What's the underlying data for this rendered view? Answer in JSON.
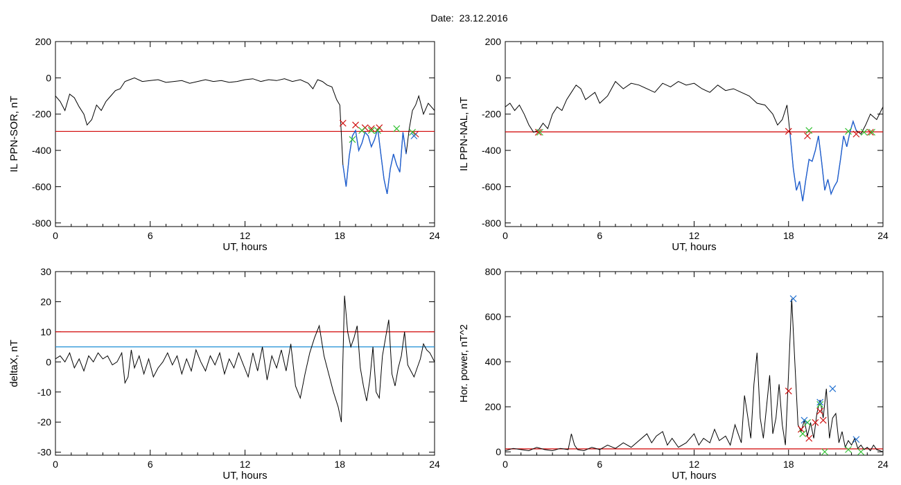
{
  "page": {
    "title": "Date:  23.12.2016"
  },
  "colors": {
    "trace": "#000000",
    "threshold_red": "#d00000",
    "threshold_blue": "#1f8fd6",
    "highlight_blue": "#1f5fd0",
    "mark_red": "#d01010",
    "mark_green": "#30c030",
    "mark_blue": "#2070d0"
  },
  "chart_data": [
    {
      "id": "sor",
      "type": "line",
      "ylabel": "IL PPN-SOR, nT",
      "xlabel": "UT, hours",
      "xlim": [
        0,
        24
      ],
      "ylim": [
        -820,
        200
      ],
      "xticks": [
        0,
        6,
        12,
        18,
        24
      ],
      "yticks": [
        200,
        0,
        -200,
        -400,
        -600,
        -800
      ],
      "threshold": {
        "value": -295,
        "color": "red"
      },
      "series": [
        {
          "x": [
            0,
            0.3,
            0.6,
            0.9,
            1.2,
            1.5,
            1.8,
            2.0,
            2.3,
            2.6,
            2.9,
            3.2,
            3.5,
            3.8,
            4.1,
            4.4,
            4.7,
            5.0,
            5.5,
            6.0,
            6.5,
            7.0,
            7.5,
            8.0,
            8.5,
            9.0,
            9.5,
            10,
            10.5,
            11,
            11.5,
            12,
            12.5,
            13,
            13.5,
            14,
            14.5,
            15,
            15.5,
            16,
            16.3,
            16.6,
            16.9,
            17.2,
            17.5,
            17.8,
            18.0,
            18.2,
            18.4,
            18.6,
            18.8,
            19.0,
            19.2,
            19.4,
            19.6,
            19.8,
            20.0,
            20.2,
            20.4,
            20.6,
            20.8,
            21.0,
            21.2,
            21.4,
            21.6,
            21.8,
            22.0,
            22.2,
            22.4,
            22.6,
            22.8,
            23.0,
            23.3,
            23.6,
            24
          ],
          "y": [
            -100,
            -130,
            -180,
            -90,
            -110,
            -160,
            -200,
            -260,
            -230,
            -150,
            -180,
            -130,
            -100,
            -70,
            -60,
            -20,
            -10,
            0,
            -20,
            -15,
            -10,
            -25,
            -20,
            -15,
            -30,
            -20,
            -10,
            -20,
            -15,
            -25,
            -20,
            -10,
            -5,
            -20,
            -10,
            -15,
            -5,
            -20,
            -10,
            -30,
            -60,
            -10,
            -20,
            -40,
            -50,
            -120,
            -150,
            -480,
            -600,
            -430,
            -320,
            -290,
            -400,
            -360,
            -300,
            -320,
            -380,
            -340,
            -280,
            -420,
            -560,
            -640,
            -500,
            -420,
            -480,
            -520,
            -300,
            -420,
            -280,
            -180,
            -150,
            -100,
            -200,
            -140,
            -180
          ]
        }
      ],
      "highlight": {
        "x_range": [
          18.2,
          22.3
        ]
      },
      "marks_red": [
        [
          18.2,
          -250
        ],
        [
          19.0,
          -260
        ],
        [
          19.6,
          -275
        ],
        [
          20.0,
          -280
        ],
        [
          20.5,
          -275
        ],
        [
          22.8,
          -310
        ]
      ],
      "marks_green": [
        [
          18.8,
          -340
        ],
        [
          19.4,
          -290
        ],
        [
          20.0,
          -290
        ],
        [
          20.4,
          -290
        ],
        [
          21.6,
          -280
        ],
        [
          22.6,
          -300
        ]
      ],
      "marks_blue": [
        [
          22.7,
          -320
        ]
      ]
    },
    {
      "id": "nal",
      "type": "line",
      "ylabel": "IL PPN-NAL, nT",
      "xlabel": "UT, hours",
      "xlim": [
        0,
        24
      ],
      "ylim": [
        -820,
        200
      ],
      "xticks": [
        0,
        6,
        12,
        18,
        24
      ],
      "yticks": [
        200,
        0,
        -200,
        -400,
        -600,
        -800
      ],
      "threshold": {
        "value": -298,
        "color": "red"
      },
      "series": [
        {
          "x": [
            0,
            0.3,
            0.6,
            0.9,
            1.2,
            1.5,
            1.8,
            2.1,
            2.4,
            2.7,
            3.0,
            3.3,
            3.6,
            3.9,
            4.2,
            4.5,
            4.8,
            5.1,
            5.4,
            5.7,
            6.0,
            6.5,
            7.0,
            7.5,
            8.0,
            8.5,
            9.0,
            9.5,
            10,
            10.5,
            11,
            11.5,
            12,
            12.5,
            13,
            13.5,
            14,
            14.5,
            15,
            15.5,
            16,
            16.5,
            17,
            17.3,
            17.6,
            17.9,
            18.1,
            18.3,
            18.5,
            18.7,
            18.9,
            19.1,
            19.3,
            19.5,
            19.7,
            19.9,
            20.1,
            20.3,
            20.5,
            20.7,
            20.9,
            21.1,
            21.3,
            21.5,
            21.7,
            21.9,
            22.1,
            22.3,
            22.6,
            22.9,
            23.2,
            23.6,
            24
          ],
          "y": [
            -160,
            -140,
            -180,
            -150,
            -200,
            -260,
            -300,
            -290,
            -250,
            -280,
            -200,
            -160,
            -180,
            -120,
            -80,
            -40,
            -60,
            -120,
            -100,
            -80,
            -140,
            -100,
            -20,
            -60,
            -30,
            -40,
            -60,
            -80,
            -30,
            -50,
            -20,
            -40,
            -30,
            -60,
            -80,
            -40,
            -70,
            -60,
            -80,
            -100,
            -140,
            -150,
            -200,
            -260,
            -230,
            -150,
            -310,
            -500,
            -620,
            -570,
            -680,
            -560,
            -450,
            -460,
            -400,
            -320,
            -460,
            -620,
            -560,
            -640,
            -600,
            -570,
            -450,
            -320,
            -380,
            -300,
            -240,
            -290,
            -310,
            -260,
            -200,
            -230,
            -160
          ]
        }
      ],
      "highlight": {
        "x_range": [
          18.1,
          22.3
        ]
      },
      "marks_red": [
        [
          2.1,
          -300
        ],
        [
          18.0,
          -295
        ],
        [
          19.2,
          -320
        ],
        [
          22.3,
          -310
        ],
        [
          23.2,
          -300
        ]
      ],
      "marks_green": [
        [
          2.2,
          -300
        ],
        [
          19.3,
          -290
        ],
        [
          21.8,
          -295
        ],
        [
          22.8,
          -300
        ],
        [
          23.3,
          -300
        ]
      ],
      "marks_blue": []
    },
    {
      "id": "deltax",
      "type": "line",
      "ylabel": "deltaX, nT",
      "xlabel": "UT, hours",
      "xlim": [
        0,
        24
      ],
      "ylim": [
        -31,
        30
      ],
      "xticks": [
        0,
        6,
        12,
        18,
        24
      ],
      "yticks": [
        30,
        20,
        10,
        0,
        -10,
        -20,
        -30
      ],
      "threshold": {
        "value": 10,
        "color": "red"
      },
      "threshold2": {
        "value": 5,
        "color": "blue"
      },
      "series": [
        {
          "x": [
            0,
            0.3,
            0.6,
            0.9,
            1.2,
            1.5,
            1.8,
            2.1,
            2.4,
            2.7,
            3.0,
            3.3,
            3.6,
            3.9,
            4.2,
            4.4,
            4.6,
            4.8,
            5.0,
            5.3,
            5.6,
            5.9,
            6.2,
            6.5,
            6.8,
            7.1,
            7.4,
            7.7,
            8.0,
            8.3,
            8.6,
            8.9,
            9.2,
            9.5,
            9.8,
            10.1,
            10.4,
            10.7,
            11.0,
            11.3,
            11.6,
            11.9,
            12.2,
            12.5,
            12.8,
            13.1,
            13.4,
            13.7,
            14.0,
            14.3,
            14.6,
            14.9,
            15.2,
            15.5,
            15.8,
            16.1,
            16.4,
            16.7,
            17.0,
            17.3,
            17.6,
            17.9,
            18.1,
            18.3,
            18.5,
            18.7,
            18.9,
            19.1,
            19.3,
            19.5,
            19.7,
            19.9,
            20.1,
            20.3,
            20.5,
            20.7,
            20.9,
            21.1,
            21.3,
            21.5,
            21.7,
            21.9,
            22.1,
            22.3,
            22.5,
            22.7,
            22.9,
            23.1,
            23.3,
            23.5,
            23.7,
            24
          ],
          "y": [
            1,
            2,
            0,
            3,
            -2,
            1,
            -3,
            2,
            0,
            3,
            1,
            2,
            -1,
            0,
            3,
            -7,
            -5,
            4,
            -2,
            2,
            -4,
            1,
            -5,
            -2,
            0,
            3,
            -1,
            2,
            -4,
            1,
            -3,
            4,
            0,
            -3,
            2,
            -1,
            3,
            -4,
            1,
            -2,
            3,
            -1,
            -5,
            3,
            -3,
            5,
            -6,
            2,
            -2,
            4,
            -3,
            6,
            -8,
            -12,
            -4,
            3,
            8,
            12,
            2,
            -4,
            -10,
            -15,
            -20,
            22,
            10,
            5,
            8,
            12,
            -2,
            -8,
            -13,
            -6,
            5,
            -10,
            -12,
            2,
            8,
            14,
            -4,
            -8,
            -2,
            2,
            10,
            -1,
            -3,
            -5,
            -2,
            1,
            6,
            4,
            3,
            0
          ]
        }
      ],
      "highlight": null,
      "marks_red": [],
      "marks_green": [],
      "marks_blue": []
    },
    {
      "id": "power",
      "type": "line",
      "ylabel": "Hor. power, nT^2",
      "xlabel": "UT, hours",
      "xlim": [
        0,
        24
      ],
      "ylim": [
        -15,
        800
      ],
      "xticks": [
        0,
        6,
        12,
        18,
        24
      ],
      "yticks": [
        800,
        600,
        400,
        200,
        0
      ],
      "threshold": {
        "value": 13,
        "color": "red"
      },
      "series": [
        {
          "x": [
            0,
            0.5,
            1.0,
            1.5,
            2.0,
            2.5,
            3.0,
            3.5,
            4.0,
            4.2,
            4.4,
            4.6,
            5.0,
            5.5,
            6.0,
            6.5,
            7.0,
            7.5,
            8.0,
            8.5,
            9.0,
            9.3,
            9.6,
            10.0,
            10.3,
            10.6,
            11.0,
            11.5,
            12.0,
            12.3,
            12.6,
            13.0,
            13.3,
            13.6,
            14.0,
            14.3,
            14.6,
            15.0,
            15.2,
            15.4,
            15.6,
            15.8,
            16.0,
            16.2,
            16.4,
            16.6,
            16.8,
            17.0,
            17.2,
            17.4,
            17.6,
            17.8,
            18.0,
            18.2,
            18.4,
            18.6,
            18.8,
            19.0,
            19.2,
            19.4,
            19.6,
            19.8,
            20.0,
            20.2,
            20.4,
            20.6,
            20.8,
            21.0,
            21.2,
            21.4,
            21.6,
            21.8,
            22.0,
            22.2,
            22.4,
            22.6,
            22.8,
            23.0,
            23.2,
            23.4,
            23.6,
            23.8,
            24
          ],
          "y": [
            5,
            15,
            10,
            5,
            20,
            10,
            5,
            15,
            10,
            80,
            30,
            10,
            5,
            20,
            10,
            30,
            15,
            40,
            20,
            50,
            80,
            40,
            70,
            90,
            30,
            60,
            20,
            40,
            80,
            30,
            60,
            40,
            100,
            50,
            70,
            30,
            120,
            40,
            250,
            160,
            60,
            300,
            440,
            150,
            60,
            200,
            340,
            80,
            150,
            300,
            120,
            30,
            350,
            680,
            400,
            120,
            90,
            140,
            70,
            130,
            60,
            170,
            230,
            150,
            280,
            60,
            150,
            170,
            40,
            90,
            20,
            50,
            30,
            60,
            15,
            30,
            10,
            20,
            5,
            30,
            10,
            5,
            0
          ]
        }
      ],
      "highlight": null,
      "marks_red": [
        [
          18.0,
          270
        ],
        [
          18.8,
          100
        ],
        [
          19.3,
          60
        ],
        [
          19.7,
          130
        ],
        [
          20.0,
          180
        ],
        [
          20.2,
          140
        ]
      ],
      "marks_green": [
        [
          18.9,
          80
        ],
        [
          19.2,
          130
        ],
        [
          20.0,
          210
        ],
        [
          20.3,
          0
        ],
        [
          21.8,
          10
        ],
        [
          22.6,
          0
        ]
      ],
      "marks_blue": [
        [
          18.3,
          680
        ],
        [
          19.0,
          140
        ],
        [
          20.0,
          220
        ],
        [
          20.8,
          280
        ],
        [
          22.3,
          55
        ]
      ]
    }
  ]
}
